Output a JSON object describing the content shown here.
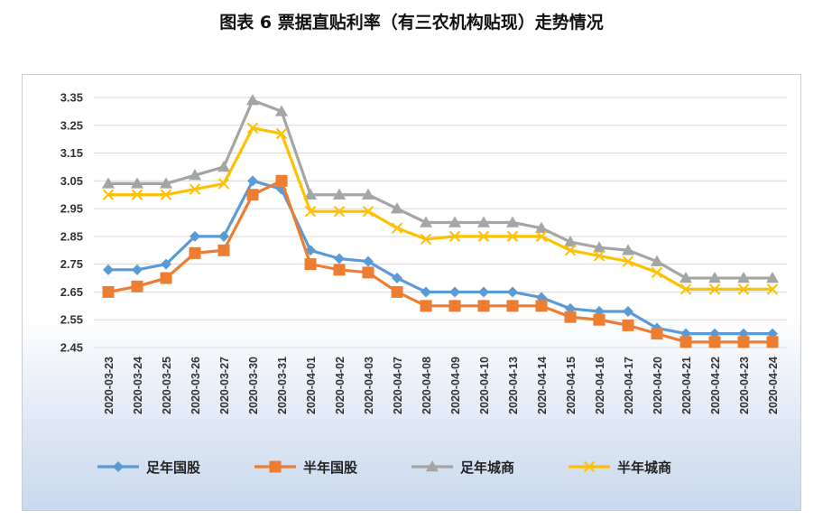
{
  "title": "图表 6  票据直贴利率（有三农机构贴现）走势情况",
  "chart_data": {
    "type": "line",
    "ylim": [
      2.45,
      3.35
    ],
    "yticks": [
      "3.35",
      "3.25",
      "3.15",
      "3.05",
      "2.95",
      "2.85",
      "2.75",
      "2.65",
      "2.55",
      "2.45"
    ],
    "grid": true,
    "legend_position": "bottom",
    "categories": [
      "2020-03-23",
      "2020-03-24",
      "2020-03-25",
      "2020-03-26",
      "2020-03-27",
      "2020-03-30",
      "2020-03-31",
      "2020-04-01",
      "2020-04-02",
      "2020-04-03",
      "2020-04-07",
      "2020-04-08",
      "2020-04-09",
      "2020-04-10",
      "2020-04-13",
      "2020-04-14",
      "2020-04-15",
      "2020-04-16",
      "2020-04-17",
      "2020-04-20",
      "2020-04-21",
      "2020-04-22",
      "2020-04-23",
      "2020-04-24"
    ],
    "series": [
      {
        "name": "足年国股",
        "color": "#5b9bd5",
        "marker": "diamond",
        "values": [
          2.73,
          2.73,
          2.75,
          2.85,
          2.85,
          3.05,
          3.02,
          2.8,
          2.77,
          2.76,
          2.7,
          2.65,
          2.65,
          2.65,
          2.65,
          2.63,
          2.59,
          2.58,
          2.58,
          2.52,
          2.5,
          2.5,
          2.5,
          2.5
        ]
      },
      {
        "name": "半年国股",
        "color": "#ed7d31",
        "marker": "square",
        "values": [
          2.65,
          2.67,
          2.7,
          2.79,
          2.8,
          3.0,
          3.05,
          2.75,
          2.73,
          2.72,
          2.65,
          2.6,
          2.6,
          2.6,
          2.6,
          2.6,
          2.56,
          2.55,
          2.53,
          2.5,
          2.47,
          2.47,
          2.47,
          2.47
        ]
      },
      {
        "name": "足年城商",
        "color": "#a5a5a5",
        "marker": "triangle",
        "values": [
          3.04,
          3.04,
          3.04,
          3.07,
          3.1,
          3.34,
          3.3,
          3.0,
          3.0,
          3.0,
          2.95,
          2.9,
          2.9,
          2.9,
          2.9,
          2.88,
          2.83,
          2.81,
          2.8,
          2.76,
          2.7,
          2.7,
          2.7,
          2.7
        ]
      },
      {
        "name": "半年城商",
        "color": "#ffc000",
        "marker": "x",
        "values": [
          3.0,
          3.0,
          3.0,
          3.02,
          3.04,
          3.24,
          3.22,
          2.94,
          2.94,
          2.94,
          2.88,
          2.84,
          2.85,
          2.85,
          2.85,
          2.85,
          2.8,
          2.78,
          2.76,
          2.72,
          2.66,
          2.66,
          2.66,
          2.66
        ]
      }
    ]
  }
}
